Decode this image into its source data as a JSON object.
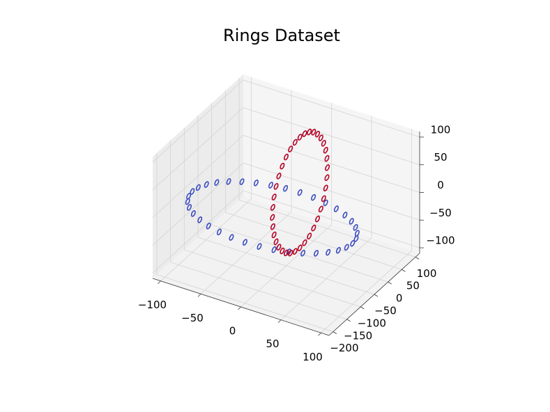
{
  "chart_data": {
    "type": "scatter3d",
    "title": "Rings Dataset",
    "series": [
      {
        "color": "#3b4cc0",
        "x": [
          100,
          98.5,
          94,
          86.6,
          76.6,
          64.3,
          50,
          34.2,
          17.4,
          0,
          -17.4,
          -34.2,
          -50,
          -64.3,
          -76.6,
          -86.6,
          -94,
          -98.5,
          -100,
          -98.5,
          -94,
          -86.6,
          -76.6,
          -64.3,
          -50,
          -34.2,
          -17.4,
          0,
          17.4,
          34.2,
          50,
          64.3,
          76.6,
          86.6,
          94,
          98.5
        ],
        "y": [
          -100,
          -82.6,
          -65.8,
          -50,
          -35.7,
          -23.4,
          -13.4,
          -6,
          -1.5,
          0,
          -1.5,
          -6,
          -13.4,
          -23.4,
          -35.7,
          -50,
          -65.8,
          -82.6,
          -100,
          -117.4,
          -134.2,
          -150,
          -164.3,
          -176.6,
          -186.6,
          -194,
          -198.5,
          -200,
          -198.5,
          -194,
          -186.6,
          -176.6,
          -164.3,
          -150,
          -134.2,
          -117.4
        ],
        "z": [
          0,
          0,
          0,
          0,
          0,
          0,
          0,
          0,
          0,
          0,
          0,
          0,
          0,
          0,
          0,
          0,
          0,
          0,
          0,
          0,
          0,
          0,
          0,
          0,
          0,
          0,
          0,
          0,
          0,
          0,
          0,
          0,
          0,
          0,
          0,
          0
        ]
      },
      {
        "color": "#b40426",
        "x": [
          0,
          0,
          0,
          0,
          0,
          0,
          0,
          0,
          0,
          0,
          0,
          0,
          0,
          0,
          0,
          0,
          0,
          0,
          0,
          0,
          0,
          0,
          0,
          0,
          0,
          0,
          0,
          0,
          0,
          0,
          0,
          0,
          0,
          0,
          0,
          0
        ],
        "y": [
          100,
          98.5,
          94,
          86.6,
          76.6,
          64.3,
          50,
          34.2,
          17.4,
          0,
          -17.4,
          -34.2,
          -50,
          -64.3,
          -76.6,
          -86.6,
          -94,
          -98.5,
          -100,
          -98.5,
          -94,
          -86.6,
          -76.6,
          -64.3,
          -50,
          -34.2,
          -17.4,
          0,
          17.4,
          34.2,
          50,
          64.3,
          76.6,
          86.6,
          94,
          98.5
        ],
        "z": [
          0,
          17.4,
          34.2,
          50,
          64.3,
          76.6,
          86.6,
          94,
          98.5,
          100,
          98.5,
          94,
          86.6,
          76.6,
          64.3,
          50,
          34.2,
          17.4,
          0,
          -17.4,
          -34.2,
          -50,
          -64.3,
          -76.6,
          -86.6,
          -94,
          -98.5,
          -100,
          -98.5,
          -94,
          -86.6,
          -76.6,
          -64.3,
          -50,
          -34.2,
          -17.4
        ]
      }
    ],
    "xlim": [
      -110,
      110
    ],
    "ylim": [
      -215,
      115
    ],
    "zlim": [
      -110,
      110
    ],
    "xticks": [
      {
        "value": -100,
        "label": "−100"
      },
      {
        "value": -50,
        "label": "−50"
      },
      0,
      50,
      100
    ],
    "yticks": [
      {
        "value": -200,
        "label": "−200"
      },
      {
        "value": -150,
        "label": "−150"
      },
      {
        "value": -100,
        "label": "−100"
      },
      {
        "value": -50,
        "label": "−50"
      },
      0,
      50,
      100
    ],
    "zticks": [
      {
        "value": -100,
        "label": "−100"
      },
      {
        "value": -50,
        "label": "−50"
      },
      0,
      50,
      100
    ],
    "grid": true
  }
}
